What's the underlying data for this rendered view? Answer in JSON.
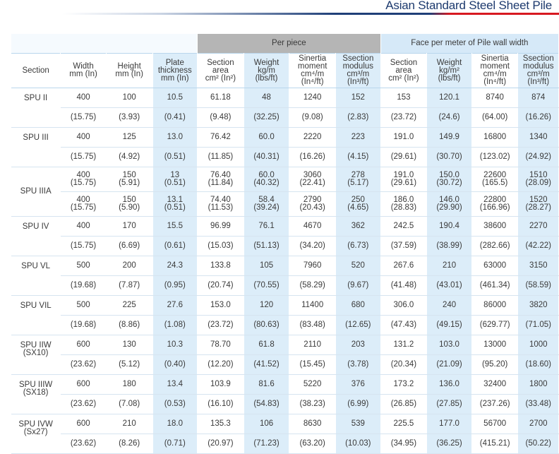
{
  "title": "Asian Standard Steel Sheet Pile",
  "group_headers": {
    "per_piece": "Per piece",
    "per_meter": "Face per meter of Pile wall width"
  },
  "columns": {
    "section": "Section",
    "width": "Width\nmm (In)",
    "height": "Height\nmm (In)",
    "plate": "Plate\nthickness\nmm (In)",
    "area_pp": "Section\narea\ncm² (In²)",
    "weight_pp": "Weight\nkg/m\n(lbs/ft)",
    "inertia_pp": "Sinertia\nmoment\ncm⁴/m (In⁴/ft)",
    "modulus_pp": "Ssection\nmodulus\ncm³/m (In³/ft)",
    "area_pm": "Section\narea\ncm² (In²)",
    "weight_pm": "Weight\nkg/m²\n(lbs/ft)",
    "inertia_pm": "Sinertia\nmoment\ncm⁴/m (In⁴/ft)",
    "modulus_pm": "Ssection\nmodulus\ncm³/m (In³/ft)"
  },
  "sections": [
    {
      "name": "SPU II",
      "rows": [
        [
          "400",
          "100",
          "10.5",
          "61.18",
          "48",
          "1240",
          "152",
          "153",
          "120.1",
          "8740",
          "874"
        ],
        [
          "(15.75)",
          "(3.93)",
          "(0.41)",
          "(9.48)",
          "(32.25)",
          "(9.08)",
          "(2.83)",
          "(23.72)",
          "(24.6)",
          "(64.00)",
          "(16.26)"
        ]
      ]
    },
    {
      "name": "SPU III",
      "rows": [
        [
          "400",
          "125",
          "13.0",
          "76.42",
          "60.0",
          "2220",
          "223",
          "191.0",
          "149.9",
          "16800",
          "1340"
        ],
        [
          "(15.75)",
          "(4.92)",
          "(0.51)",
          "(11.85)",
          "(40.31)",
          "(16.26)",
          "(4.15)",
          "(29.61)",
          "(30.70)",
          "(123.02)",
          "(24.92)"
        ]
      ]
    },
    {
      "name": "SPU IIIA",
      "rows": [
        [
          "400\n(15.75)",
          "150\n(5.91)",
          "13\n(0.51)",
          "76.40\n(11.84)",
          "60.0\n(40.32)",
          "3060\n(22.41)",
          "278\n(5.17)",
          "191.0\n(29.61)",
          "150.0\n(30.72)",
          "22600\n(165.5)",
          "1510\n(28.09)"
        ],
        [
          "400\n(15.75)",
          "150\n(5.90)",
          "13.1\n(0.51)",
          "74.40\n(11.53)",
          "58.4\n(39.24)",
          "2790\n(20.43)",
          "250\n(4.65)",
          "186.0\n(28.83)",
          "146.0\n(29.90)",
          "22800\n(166.96)",
          "1520\n(28.27)"
        ]
      ]
    },
    {
      "name": "SPU IV",
      "rows": [
        [
          "400",
          "170",
          "15.5",
          "96.99",
          "76.1",
          "4670",
          "362",
          "242.5",
          "190.4",
          "38600",
          "2270"
        ],
        [
          "(15.75)",
          "(6.69)",
          "(0.61)",
          "(15.03)",
          "(51.13)",
          "(34.20)",
          "(6.73)",
          "(37.59)",
          "(38.99)",
          "(282.66)",
          "(42.22)"
        ]
      ]
    },
    {
      "name": "SPU VL",
      "rows": [
        [
          "500",
          "200",
          "24.3",
          "133.8",
          "105",
          "7960",
          "520",
          "267.6",
          "210",
          "63000",
          "3150"
        ],
        [
          "(19.68)",
          "(7.87)",
          "(0.95)",
          "(20.74)",
          "(70.55)",
          "(58.29)",
          "(9.67)",
          "(41.48)",
          "(43.01)",
          "(461.34)",
          "(58.59)"
        ]
      ]
    },
    {
      "name": "SPU VIL",
      "rows": [
        [
          "500",
          "225",
          "27.6",
          "153.0",
          "120",
          "11400",
          "680",
          "306.0",
          "240",
          "86000",
          "3820"
        ],
        [
          "(19.68)",
          "(8.86)",
          "(1.08)",
          "(23.72)",
          "(80.63)",
          "(83.48)",
          "(12.65)",
          "(47.43)",
          "(49.15)",
          "(629.77)",
          "(71.05)"
        ]
      ]
    },
    {
      "name": "SPU IIW\n(SX10)",
      "rows": [
        [
          "600",
          "130",
          "10.3",
          "78.70",
          "61.8",
          "2110",
          "203",
          "131.2",
          "103.0",
          "13000",
          "1000"
        ],
        [
          "(23.62)",
          "(5.12)",
          "(0.40)",
          "(12.20)",
          "(41.52)",
          "(15.45)",
          "(3.78)",
          "(20.34)",
          "(21.09)",
          "(95.20)",
          "(18.60)"
        ]
      ]
    },
    {
      "name": "SPU IIIW\n(SX18)",
      "rows": [
        [
          "600",
          "180",
          "13.4",
          "103.9",
          "81.6",
          "5220",
          "376",
          "173.2",
          "136.0",
          "32400",
          "1800"
        ],
        [
          "(23.62)",
          "(7.08)",
          "(0.53)",
          "(16.10)",
          "(54.83)",
          "(38.23)",
          "(6.99)",
          "(26.85)",
          "(27.85)",
          "(237.26)",
          "(33.48)"
        ]
      ]
    },
    {
      "name": "SPU IVW\n(Sx27)",
      "rows": [
        [
          "600",
          "210",
          "18.0",
          "135.3",
          "106",
          "8630",
          "539",
          "225.5",
          "177.0",
          "56700",
          "2700"
        ],
        [
          "(23.62)",
          "(8.26)",
          "(0.71)",
          "(20.97)",
          "(71.23)",
          "(63.20)",
          "(10.03)",
          "(34.95)",
          "(36.25)",
          "(415.21)",
          "(50.22)"
        ]
      ]
    }
  ],
  "colors": {
    "title": "#1d3a6e",
    "grey_header": "#b5b5b5",
    "blue_header": "#d6e9f8",
    "shaded_column": "#dcedf9",
    "navy_stripe": "#1f3f78",
    "red_stripe": "#d71920"
  }
}
